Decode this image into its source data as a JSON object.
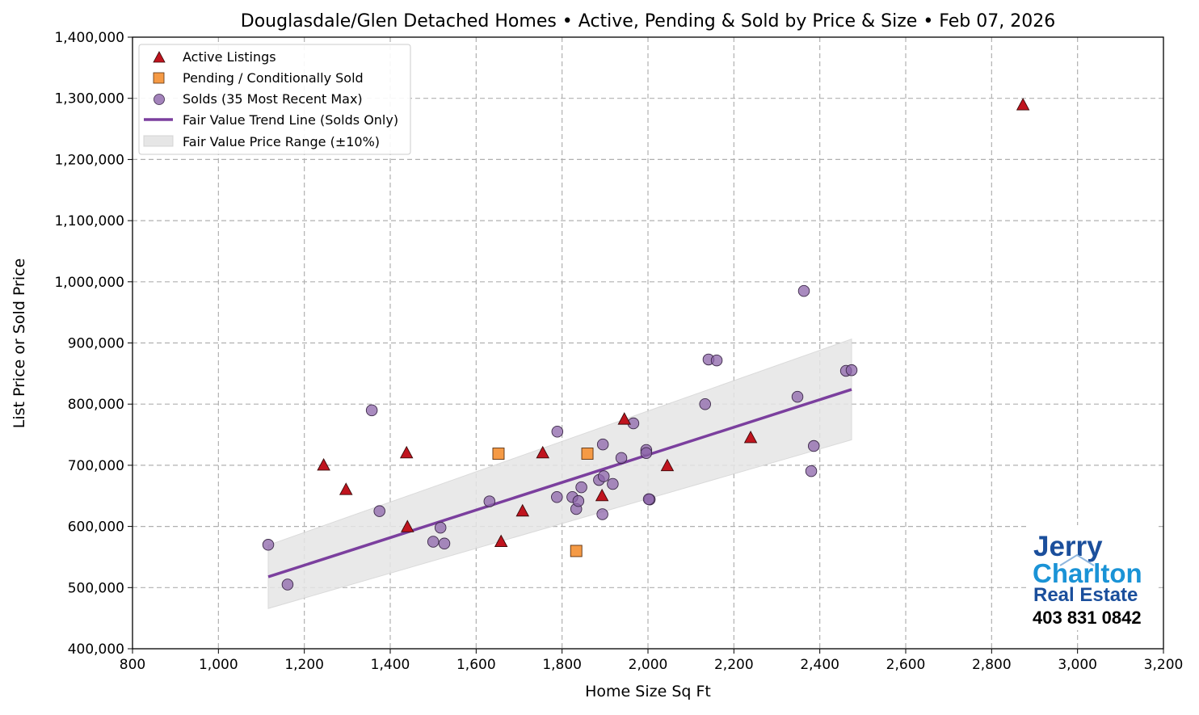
{
  "chart_data": {
    "type": "scatter",
    "title": "Douglasdale/Glen Detached Homes • Active, Pending & Sold by Price & Size • Feb 07, 2026",
    "xlabel": "Home Size Sq Ft",
    "ylabel": "List Price or Sold Price",
    "xlim": [
      800,
      3200
    ],
    "ylim": [
      400000,
      1400000
    ],
    "x_ticks": [
      800,
      1000,
      1200,
      1400,
      1600,
      1800,
      2000,
      2200,
      2400,
      2600,
      2800,
      3000,
      3200
    ],
    "x_tick_labels": [
      "800",
      "1,000",
      "1,200",
      "1,400",
      "1,600",
      "1,800",
      "2,000",
      "2,200",
      "2,400",
      "2,600",
      "2,800",
      "3,000",
      "3,200"
    ],
    "y_ticks": [
      400000,
      500000,
      600000,
      700000,
      800000,
      900000,
      1000000,
      1100000,
      1200000,
      1300000,
      1400000
    ],
    "y_tick_labels": [
      "400,000",
      "500,000",
      "600,000",
      "700,000",
      "800,000",
      "900,000",
      "1,000,000",
      "1,100,000",
      "1,200,000",
      "1,300,000",
      "1,400,000"
    ],
    "grid": true,
    "legend_position": "top-left",
    "legend": [
      "Active Listings",
      "Pending / Conditionally Sold",
      "Solds (35 Most Recent Max)",
      "Fair Value Trend Line (Solds Only)",
      "Fair Value Price Range (±10%)"
    ],
    "colors": {
      "active": "#c0141e",
      "pending": "#f59a45",
      "sold": "#8c64aa",
      "trend": "#7b3f9e",
      "band": "#e6e6e6"
    },
    "series": [
      {
        "name": "Active Listings",
        "marker": "triangle",
        "points": [
          [
            1245,
            699900
          ],
          [
            1297,
            660000
          ],
          [
            1438,
            719900
          ],
          [
            1440,
            599000
          ],
          [
            1658,
            574900
          ],
          [
            1708,
            624900
          ],
          [
            1755,
            719900
          ],
          [
            1893,
            649900
          ],
          [
            1945,
            775000
          ],
          [
            2045,
            699000
          ],
          [
            2239,
            744900
          ],
          [
            2873,
            1289000
          ]
        ]
      },
      {
        "name": "Pending / Conditionally Sold",
        "marker": "square",
        "points": [
          [
            1652,
            719000
          ],
          [
            1859,
            719000
          ],
          [
            1833,
            559900
          ]
        ]
      },
      {
        "name": "Solds (35 Most Recent Max)",
        "marker": "circle",
        "points": [
          [
            1116,
            570000
          ],
          [
            1161,
            505000
          ],
          [
            1357,
            789900
          ],
          [
            1375,
            625000
          ],
          [
            1500,
            575000
          ],
          [
            1517,
            598000
          ],
          [
            1526,
            572000
          ],
          [
            1631,
            641000
          ],
          [
            1789,
            755000
          ],
          [
            1788,
            648000
          ],
          [
            1824,
            648000
          ],
          [
            1833,
            628500
          ],
          [
            1838,
            641500
          ],
          [
            1845,
            664000
          ],
          [
            1886,
            676000
          ],
          [
            1895,
            734000
          ],
          [
            1897,
            682000
          ],
          [
            1894,
            620000
          ],
          [
            1918,
            669500
          ],
          [
            1938,
            712000
          ],
          [
            1966,
            768500
          ],
          [
            1996,
            725000
          ],
          [
            1996,
            720000
          ],
          [
            2004,
            644000
          ],
          [
            2002,
            644500
          ],
          [
            2133,
            800000
          ],
          [
            2141,
            873000
          ],
          [
            2160,
            871500
          ],
          [
            2363,
            985000
          ],
          [
            2348,
            812000
          ],
          [
            2380,
            690500
          ],
          [
            2386,
            731500
          ],
          [
            2461,
            854500
          ],
          [
            2474,
            855500
          ]
        ]
      }
    ],
    "trend_line": {
      "name": "Fair Value Trend Line (Solds Only)",
      "x": [
        1116,
        2474
      ],
      "y": [
        517600,
        824000
      ]
    },
    "price_range": {
      "name": "Fair Value Price Range (±10%)",
      "pct": 10
    }
  },
  "logo": {
    "line1": "Jerry",
    "line2": "Charlton",
    "line3": "Real Estate",
    "phone": "403 831 0842"
  }
}
